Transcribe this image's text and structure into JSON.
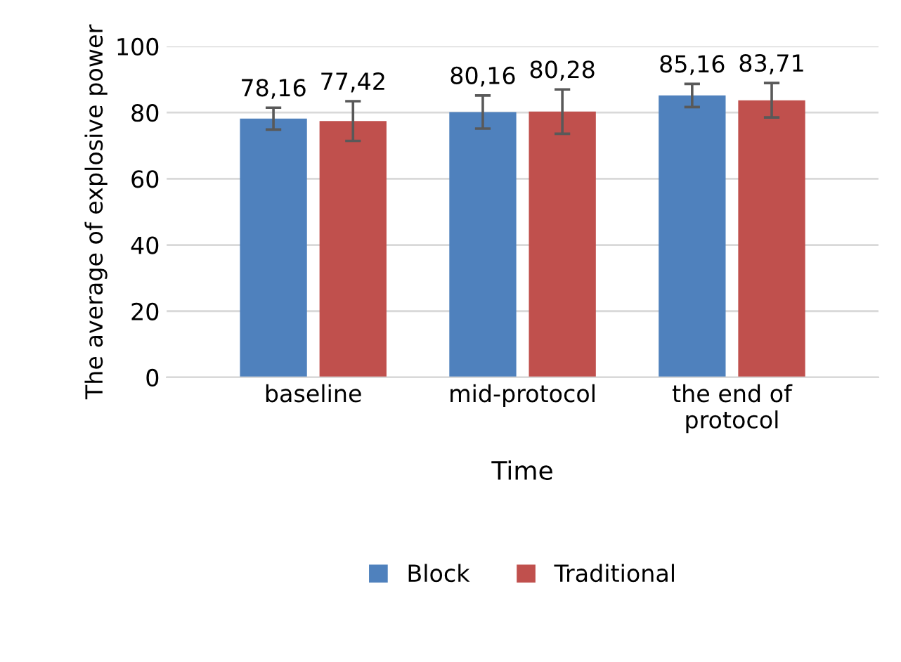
{
  "chart_data": {
    "type": "bar",
    "xlabel": "Time",
    "ylabel": "The average of explosive power",
    "categories": [
      "baseline",
      "mid-protocol",
      "the end of\nprotocol"
    ],
    "series": [
      {
        "name": "Block",
        "color": "#4f81bd",
        "values": [
          78.16,
          80.16,
          85.16
        ],
        "errors": [
          3.3,
          5,
          3.5
        ],
        "value_labels": [
          "78,16",
          "80,16",
          "85,16"
        ]
      },
      {
        "name": "Traditional",
        "color": "#c0504d",
        "values": [
          77.42,
          80.28,
          83.71
        ],
        "errors": [
          6,
          6.7,
          5.2
        ],
        "value_labels": [
          "77,42",
          "80,28",
          "83,71"
        ]
      }
    ],
    "ylim": [
      0,
      100
    ],
    "yticks": [
      0,
      20,
      40,
      60,
      80,
      100
    ],
    "grid": "y",
    "legend": "bottom"
  }
}
